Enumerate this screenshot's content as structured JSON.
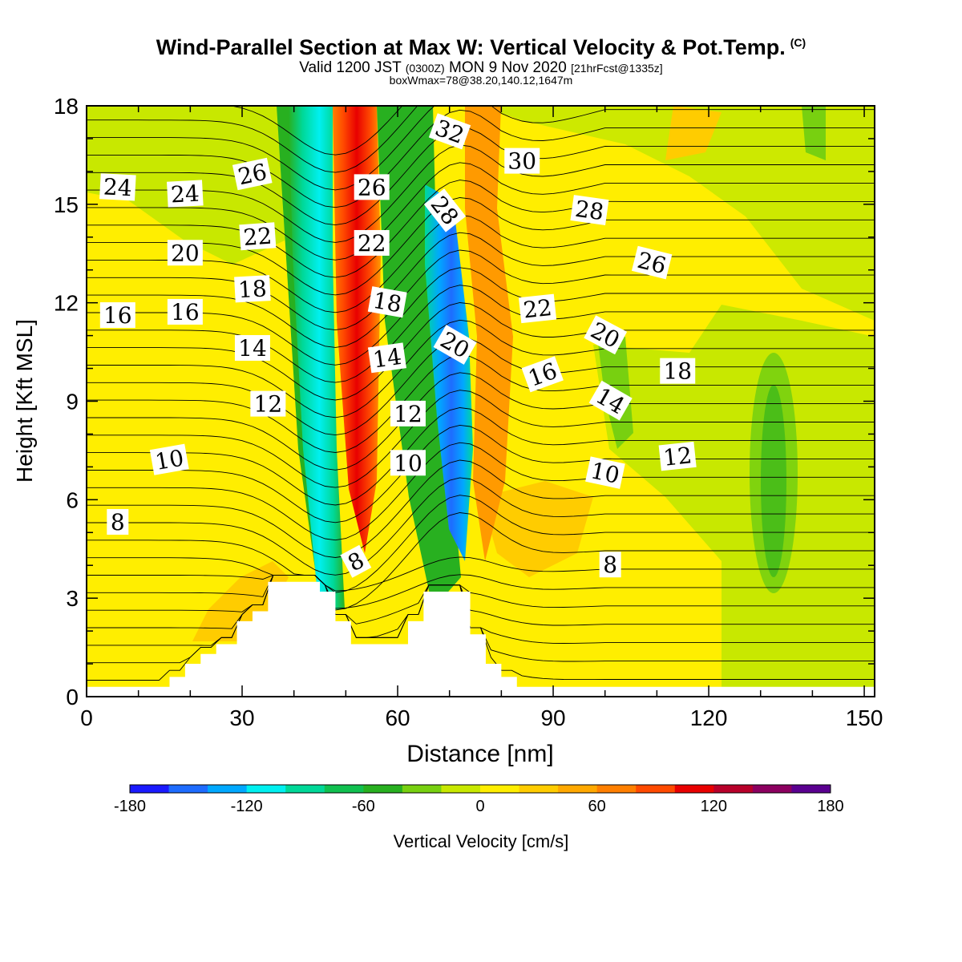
{
  "header": {
    "title": "Wind-Parallel Section at Max W: Vertical Velocity & Pot.Temp.",
    "title_tag": "(C)",
    "valid_prefix": "Valid 1200 JST",
    "valid_utc": "(0300Z)",
    "valid_date": "MON 9 Nov 2020",
    "forecast": "[21hrFcst@1335z]",
    "box_info": "boxWmax=78@38.20,140.12,1647m"
  },
  "chart_data": {
    "type": "heatmap",
    "xlabel": "Distance [nm]",
    "ylabel": "Height [Kft MSL]",
    "xlim": [
      0,
      152
    ],
    "ylim": [
      0,
      18
    ],
    "x_ticks": [
      0,
      30,
      60,
      90,
      120,
      150
    ],
    "x_tick_labels": [
      "0",
      "30",
      "60",
      "90",
      "120",
      "150"
    ],
    "y_ticks": [
      0,
      3,
      6,
      9,
      12,
      15,
      18
    ],
    "y_tick_labels": [
      "0",
      "3",
      "6",
      "9",
      "12",
      "15",
      "18"
    ],
    "colorbar": {
      "label": "Vertical Velocity [cm/s]",
      "range": [
        -180,
        180
      ],
      "step": 20,
      "tick_values": [
        -180,
        -120,
        -60,
        0,
        60,
        120,
        180
      ],
      "tick_labels": [
        "-180",
        "-120",
        "-60",
        "0",
        "60",
        "120",
        "180"
      ],
      "colors": [
        "#1a1aff",
        "#1e6cff",
        "#00a8ff",
        "#00f0f0",
        "#00d898",
        "#10c050",
        "#28b020",
        "#78d010",
        "#c8e800",
        "#ffee00",
        "#ffcc00",
        "#ffa800",
        "#ff7f00",
        "#ff4a00",
        "#e80000",
        "#b8002a",
        "#8c0060",
        "#5a0090"
      ]
    },
    "velocity_bands": [
      {
        "name": "downdraft",
        "x_base": 45,
        "x_top": 39,
        "value": -110
      },
      {
        "name": "updraft",
        "x_base": 52,
        "x_top": 51,
        "value": 120
      },
      {
        "name": "downdraft",
        "x_base": 70,
        "x_top": 66,
        "value": -150
      },
      {
        "name": "updraft",
        "x_base": 78,
        "x_top": 75,
        "value": 70
      }
    ],
    "terrain": [
      [
        0,
        0.3
      ],
      [
        16,
        0.3
      ],
      [
        16,
        0.6
      ],
      [
        19,
        0.6
      ],
      [
        19,
        1.0
      ],
      [
        22,
        1.0
      ],
      [
        22,
        1.3
      ],
      [
        25,
        1.3
      ],
      [
        25,
        1.6
      ],
      [
        29,
        1.6
      ],
      [
        29,
        2.3
      ],
      [
        32,
        2.3
      ],
      [
        32,
        2.6
      ],
      [
        35,
        2.6
      ],
      [
        35,
        3.5
      ],
      [
        45,
        3.5
      ],
      [
        45,
        3.2
      ],
      [
        48,
        3.2
      ],
      [
        48,
        2.3
      ],
      [
        51,
        2.3
      ],
      [
        51,
        1.6
      ],
      [
        62,
        1.6
      ],
      [
        62,
        2.3
      ],
      [
        65,
        2.3
      ],
      [
        65,
        3.2
      ],
      [
        74,
        3.2
      ],
      [
        74,
        1.9
      ],
      [
        77,
        1.9
      ],
      [
        77,
        1.0
      ],
      [
        80,
        1.0
      ],
      [
        80,
        0.6
      ],
      [
        83,
        0.6
      ],
      [
        83,
        0.3
      ],
      [
        152,
        0.3
      ]
    ],
    "theta_contour_labels": [
      {
        "text": "24",
        "x": 6,
        "y": 15.5,
        "angle": 3
      },
      {
        "text": "24",
        "x": 19,
        "y": 15.3,
        "angle": -3
      },
      {
        "text": "26",
        "x": 32,
        "y": 15.9,
        "angle": -12
      },
      {
        "text": "22",
        "x": 33,
        "y": 14.0,
        "angle": -4
      },
      {
        "text": "20",
        "x": 19,
        "y": 13.5,
        "angle": 0
      },
      {
        "text": "18",
        "x": 32,
        "y": 12.4,
        "angle": -3
      },
      {
        "text": "16",
        "x": 6,
        "y": 11.6,
        "angle": 0
      },
      {
        "text": "16",
        "x": 19,
        "y": 11.7,
        "angle": 0
      },
      {
        "text": "14",
        "x": 32,
        "y": 10.6,
        "angle": 0
      },
      {
        "text": "12",
        "x": 35,
        "y": 8.9,
        "angle": 0
      },
      {
        "text": "10",
        "x": 16,
        "y": 7.2,
        "angle": -10
      },
      {
        "text": "8",
        "x": 6,
        "y": 5.3,
        "angle": 0
      },
      {
        "text": "26",
        "x": 55,
        "y": 15.5,
        "angle": 0
      },
      {
        "text": "22",
        "x": 55,
        "y": 13.8,
        "angle": 0
      },
      {
        "text": "18",
        "x": 58,
        "y": 12.0,
        "angle": 10
      },
      {
        "text": "14",
        "x": 58,
        "y": 10.3,
        "angle": -8
      },
      {
        "text": "12",
        "x": 62,
        "y": 8.6,
        "angle": 0
      },
      {
        "text": "10",
        "x": 62,
        "y": 7.1,
        "angle": 0
      },
      {
        "text": "8",
        "x": 52,
        "y": 4.1,
        "angle": -28
      },
      {
        "text": "32",
        "x": 70,
        "y": 17.2,
        "angle": 20
      },
      {
        "text": "28",
        "x": 69,
        "y": 14.8,
        "angle": 52
      },
      {
        "text": "20",
        "x": 71,
        "y": 10.7,
        "angle": 30
      },
      {
        "text": "30",
        "x": 84,
        "y": 16.3,
        "angle": 0
      },
      {
        "text": "28",
        "x": 97,
        "y": 14.8,
        "angle": 8
      },
      {
        "text": "26",
        "x": 109,
        "y": 13.2,
        "angle": 14
      },
      {
        "text": "22",
        "x": 87,
        "y": 11.8,
        "angle": -6
      },
      {
        "text": "20",
        "x": 100,
        "y": 11.0,
        "angle": 28
      },
      {
        "text": "18",
        "x": 114,
        "y": 9.9,
        "angle": 0
      },
      {
        "text": "16",
        "x": 88,
        "y": 9.8,
        "angle": -20
      },
      {
        "text": "14",
        "x": 101,
        "y": 9.0,
        "angle": 30
      },
      {
        "text": "12",
        "x": 114,
        "y": 7.3,
        "angle": -6
      },
      {
        "text": "10",
        "x": 100,
        "y": 6.8,
        "angle": 12
      },
      {
        "text": "8",
        "x": 101,
        "y": 4.0,
        "angle": 0
      }
    ]
  }
}
